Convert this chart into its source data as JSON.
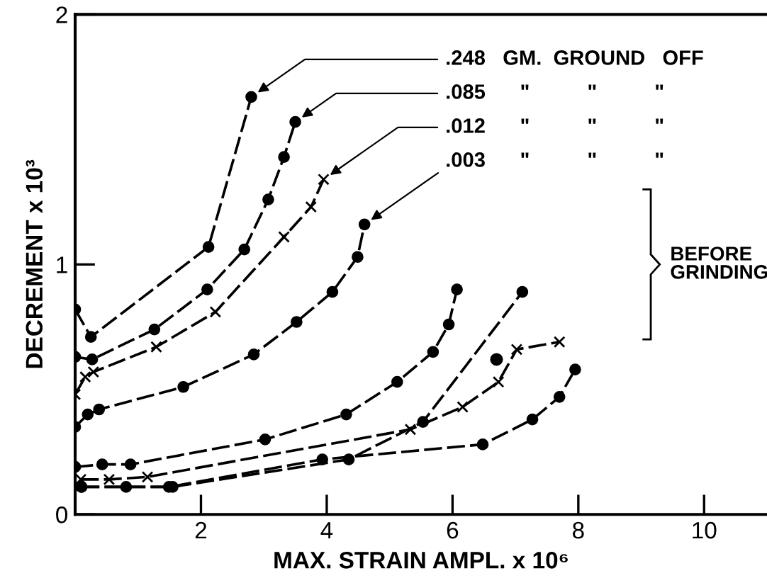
{
  "chart_data": {
    "type": "line",
    "xlabel": "MAX. STRAIN AMPL. x 10⁶",
    "ylabel": "DECREMENT x 10³",
    "xlim": [
      0,
      11
    ],
    "ylim": [
      0,
      2
    ],
    "xticks": [
      2,
      4,
      6,
      8,
      10
    ],
    "yticks": [
      0,
      1,
      2
    ],
    "grid": false,
    "legend": false,
    "line_style": "dashed",
    "series": [
      {
        "color": "#000000",
        "marker": "circle",
        "x": [
          0,
          0.25,
          2.12,
          2.8
        ],
        "values": [
          0.82,
          0.71,
          1.07,
          1.67
        ]
      },
      {
        "color": "#000000",
        "marker": "circle",
        "x": [
          0,
          0.27,
          1.26,
          2.1,
          2.69,
          3.07,
          3.32,
          3.5
        ],
        "values": [
          0.63,
          0.62,
          0.74,
          0.9,
          1.06,
          1.26,
          1.43,
          1.57
        ]
      },
      {
        "color": "#000000",
        "marker": "cross",
        "x": [
          0,
          0.16,
          0.29,
          1.29,
          2.23,
          3.32,
          3.75,
          3.95
        ],
        "values": [
          0.48,
          0.55,
          0.57,
          0.67,
          0.81,
          1.11,
          1.23,
          1.34
        ]
      },
      {
        "color": "#000000",
        "marker": "circle",
        "x": [
          0,
          0.2,
          0.38,
          1.72,
          2.84,
          3.52,
          4.09,
          4.49,
          4.6
        ],
        "values": [
          0.35,
          0.4,
          0.42,
          0.51,
          0.64,
          0.77,
          0.89,
          1.03,
          1.16
        ]
      },
      {
        "color": "#000000",
        "marker": "circle",
        "x": [
          0,
          0.43,
          0.88,
          3.02,
          4.31,
          5.12,
          5.69,
          5.94,
          6.07
        ],
        "values": [
          0.19,
          0.2,
          0.2,
          0.3,
          0.4,
          0.53,
          0.65,
          0.76,
          0.9
        ]
      },
      {
        "color": "#000000",
        "marker": "circle",
        "x": [
          0.1,
          1.55,
          4.35,
          5.53,
          7.11
        ],
        "values": [
          0.11,
          0.11,
          0.22,
          0.37,
          0.89
        ]
      },
      {
        "type": "scatter",
        "color": "#000000",
        "marker": "circle",
        "x": [
          6.7
        ],
        "values": [
          0.62
        ]
      },
      {
        "color": "#000000",
        "marker": "cross",
        "x": [
          0.09,
          0.54,
          1.15,
          5.33,
          6.16,
          6.73,
          7.02,
          7.7
        ],
        "values": [
          0.14,
          0.14,
          0.15,
          0.34,
          0.43,
          0.53,
          0.66,
          0.69
        ]
      },
      {
        "color": "#000000",
        "marker": "circle",
        "x": [
          0.1,
          0.81,
          1.49,
          3.93,
          6.48,
          7.27,
          7.7,
          7.95
        ],
        "values": [
          0.11,
          0.11,
          0.11,
          0.22,
          0.28,
          0.38,
          0.47,
          0.58
        ]
      }
    ],
    "annotations": [
      {
        "text": ".248   GM.  GROUND   OFF",
        "x": 2.8,
        "y": 1.67
      },
      {
        "text": ".085      \"          \"          \"",
        "x": 3.5,
        "y": 1.57
      },
      {
        "text": ".012      \"          \"          \"",
        "x": 3.95,
        "y": 1.34
      },
      {
        "text": ".003      \"          \"          \"",
        "x": 4.6,
        "y": 1.16
      },
      "BEFORE\nGRINDING"
    ]
  }
}
